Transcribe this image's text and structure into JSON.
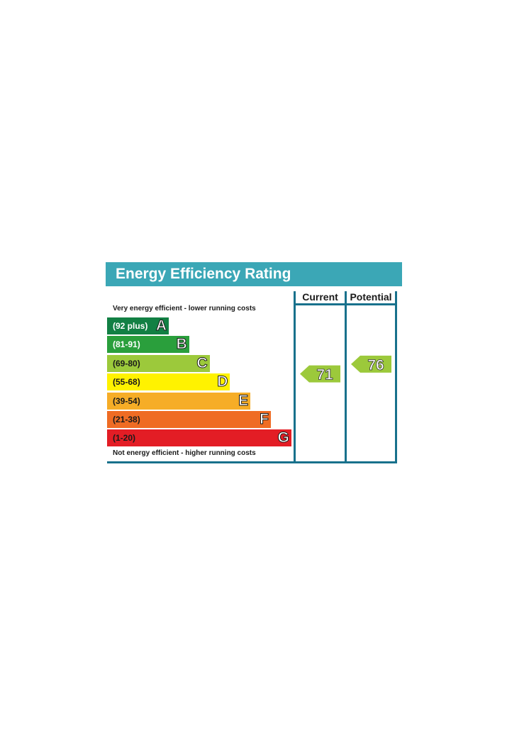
{
  "chart_data": {
    "type": "bar",
    "title": "Energy Efficiency Rating",
    "top_caption": "Very energy efficient - lower running costs",
    "bottom_caption": "Not energy efficient - higher running costs",
    "columns": [
      "Current",
      "Potential"
    ],
    "bands": [
      {
        "letter": "A",
        "range": "(92 plus)",
        "min": 92,
        "max": 100,
        "color": "#128044",
        "text_color": "#ffffff"
      },
      {
        "letter": "B",
        "range": "(81-91)",
        "min": 81,
        "max": 91,
        "color": "#2a9f3c",
        "text_color": "#ffffff"
      },
      {
        "letter": "C",
        "range": "(69-80)",
        "min": 69,
        "max": 80,
        "color": "#9cc93b",
        "text_color": "#1a1a1a"
      },
      {
        "letter": "D",
        "range": "(55-68)",
        "min": 55,
        "max": 68,
        "color": "#fff200",
        "text_color": "#1a1a1a"
      },
      {
        "letter": "E",
        "range": "(39-54)",
        "min": 39,
        "max": 54,
        "color": "#f6ad27",
        "text_color": "#1a1a1a"
      },
      {
        "letter": "F",
        "range": "(21-38)",
        "min": 21,
        "max": 38,
        "color": "#ef6c24",
        "text_color": "#1a1a1a"
      },
      {
        "letter": "G",
        "range": "(1-20)",
        "min": 1,
        "max": 20,
        "color": "#e31d25",
        "text_color": "#1a1a1a"
      }
    ],
    "current": {
      "value": 71,
      "band": "C",
      "color": "#9cc93b"
    },
    "potential": {
      "value": 76,
      "band": "C",
      "color": "#9cc93b"
    }
  }
}
